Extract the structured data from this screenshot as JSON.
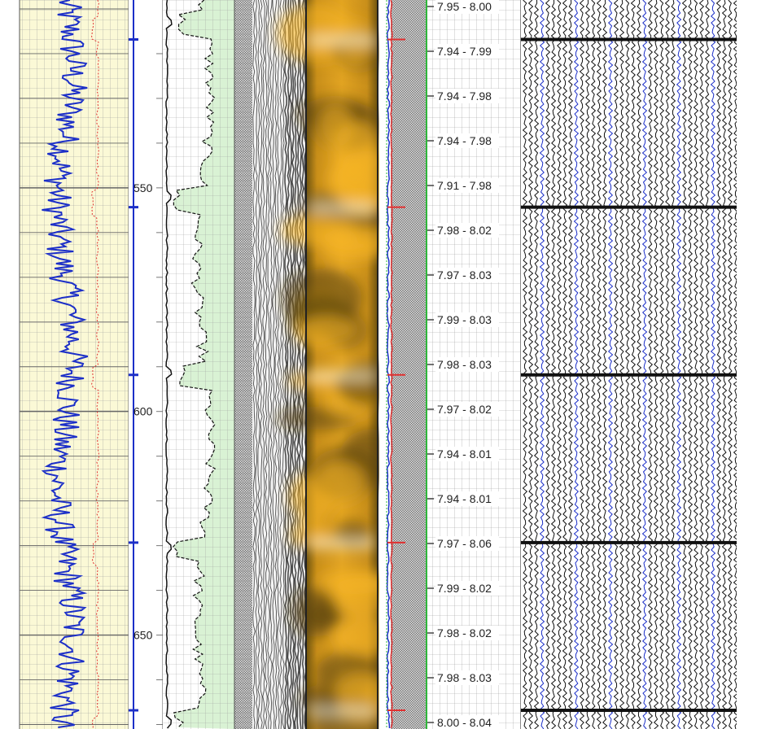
{
  "chart_data": {
    "type": "line",
    "title": "",
    "depth_axis": {
      "range": [
        508,
        671
      ],
      "labels": [
        "550",
        "600",
        "650"
      ]
    },
    "tracks": [
      {
        "name": "",
        "kind": "gamma-curve",
        "fill": "#fbf9d6",
        "curve_colors": [
          "#1c2fc8",
          "#e03030"
        ]
      },
      {
        "name": "",
        "kind": "depth",
        "marker_color": "#1c2fc8"
      },
      {
        "name": "",
        "kind": "curves",
        "fill": "#d9f2d4"
      },
      {
        "name": "",
        "kind": "waveform-vdl"
      },
      {
        "name": "",
        "kind": "image",
        "colors": [
          "#f0b020",
          "#6f5410"
        ]
      },
      {
        "name": "",
        "kind": "curves",
        "line_colors": [
          "#1c2fc8",
          "#e03030",
          "#2fb73a"
        ]
      },
      {
        "name": "",
        "kind": "interval-values"
      },
      {
        "name": "",
        "kind": "waveform-wiggle"
      }
    ],
    "interval_values": [
      "7.95 - 8.00",
      "7.94 - 7.99",
      "7.94 - 7.98",
      "7.94 - 7.98",
      "7.91 - 7.98",
      "7.98 - 8.02",
      "7.97 - 8.03",
      "7.99 - 8.03",
      "7.98 - 8.03",
      "7.97 - 8.02",
      "7.94 - 8.01",
      "7.94 - 8.01",
      "7.97 - 8.06",
      "7.99 - 8.02",
      "7.98 - 8.02",
      "7.98 - 8.03",
      "8.00 - 8.04"
    ],
    "collar_depths": [
      511,
      548.5,
      586,
      623.5,
      661
    ],
    "grid": true
  }
}
